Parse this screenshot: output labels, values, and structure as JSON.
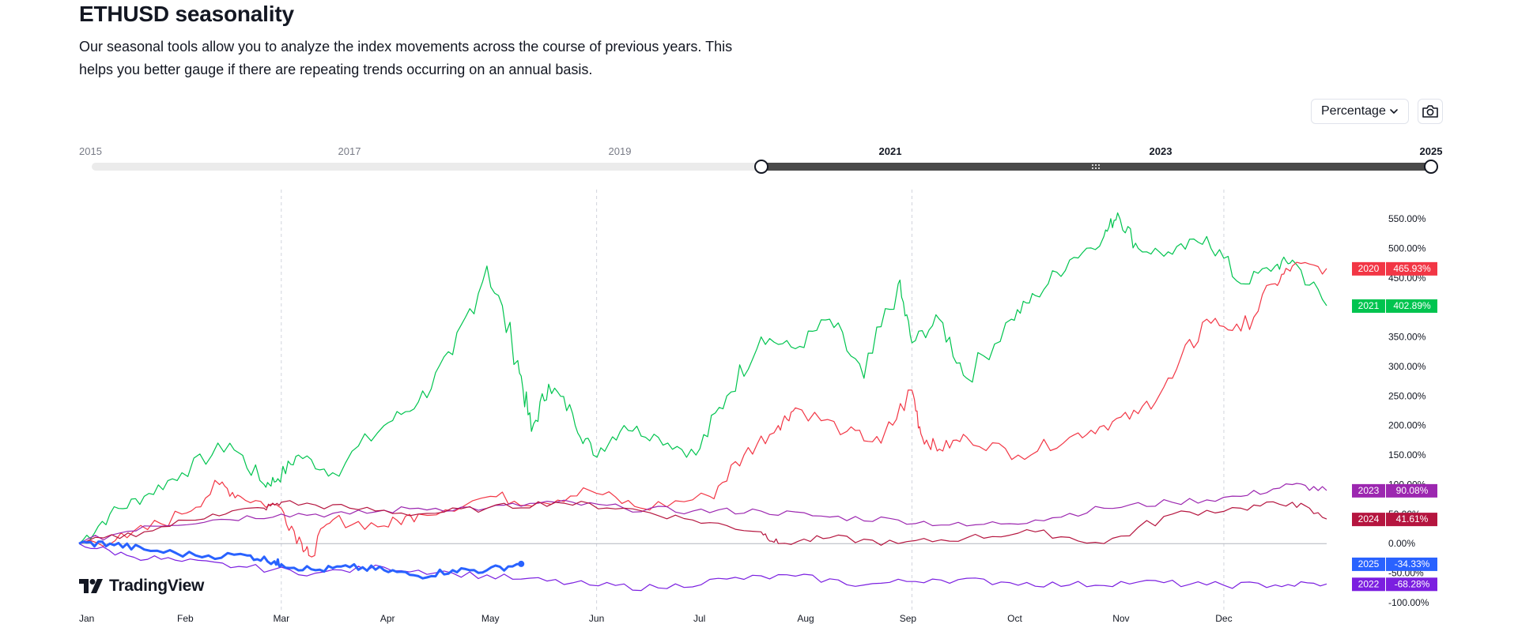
{
  "page": {
    "title": "ETHUSD seasonality",
    "description": "Our seasonal tools allow you to analyze the index movements across the course of previous years. This helps you better gauge if there are repeating trends occurring on an annual basis."
  },
  "controls": {
    "mode_label": "Percentage",
    "mode_icon": "chevron-down-icon",
    "screenshot_icon": "camera-icon"
  },
  "year_range": {
    "ticks": [
      "2015",
      "2017",
      "2019",
      "2021",
      "2023",
      "2025"
    ],
    "active_ticks": [
      "2021",
      "2023",
      "2025"
    ],
    "from": 2020,
    "to": 2025,
    "min": 2015,
    "max": 2025
  },
  "brand": {
    "name": "TradingView"
  },
  "chart_data": {
    "type": "line",
    "x_labels": [
      "Jan",
      "Feb",
      "Mar",
      "Apr",
      "May",
      "Jun",
      "Jul",
      "Aug",
      "Sep",
      "Oct",
      "Nov",
      "Dec"
    ],
    "y_ticks": [
      "-100.00%",
      "-50.00%",
      "0.00%",
      "50.00%",
      "100.00%",
      "150.00%",
      "200.00%",
      "250.00%",
      "300.00%",
      "350.00%",
      "400.00%",
      "450.00%",
      "500.00%",
      "550.00%"
    ],
    "ylim": [
      -100,
      560
    ],
    "ylabel": "",
    "xlabel": "",
    "grid": "vertical-dashed",
    "series": [
      {
        "name": "2021",
        "color": "#00c44f",
        "last_label": "402.89%",
        "x": [
          1,
          10,
          20,
          31,
          45,
          55,
          59,
          65,
          75,
          90,
          100,
          110,
          120,
          129,
          133,
          138,
          145,
          151,
          160,
          170,
          181,
          190,
          200,
          210,
          220,
          230,
          240,
          244,
          252,
          260,
          273,
          280,
          290,
          300,
          304,
          310,
          320,
          330,
          340,
          350,
          355,
          365
        ],
        "y": [
          0,
          50,
          80,
          120,
          170,
          100,
          110,
          150,
          120,
          200,
          240,
          320,
          470,
          310,
          190,
          270,
          220,
          150,
          200,
          180,
          150,
          250,
          350,
          330,
          380,
          280,
          440,
          340,
          380,
          280,
          380,
          420,
          480,
          520,
          560,
          500,
          490,
          520,
          440,
          470,
          480,
          402.89
        ]
      },
      {
        "name": "2020",
        "color": "#f23645",
        "last_label": "465.93%",
        "x": [
          1,
          15,
          31,
          42,
          48,
          60,
          66,
          68,
          75,
          90,
          100,
          121,
          135,
          150,
          165,
          185,
          195,
          205,
          210,
          225,
          235,
          244,
          247,
          252,
          260,
          275,
          290,
          300,
          310,
          320,
          330,
          340,
          350,
          355,
          365
        ],
        "y": [
          0,
          10,
          50,
          100,
          80,
          60,
          0,
          -20,
          40,
          30,
          50,
          80,
          70,
          90,
          60,
          80,
          150,
          200,
          230,
          190,
          170,
          260,
          180,
          160,
          180,
          150,
          180,
          200,
          220,
          280,
          380,
          360,
          440,
          470,
          465.93
        ]
      },
      {
        "name": "2023",
        "color": "#9c27b0",
        "last_label": "90.08%",
        "x": [
          1,
          20,
          40,
          60,
          80,
          100,
          120,
          140,
          160,
          180,
          200,
          220,
          240,
          260,
          280,
          300,
          320,
          340,
          355,
          365
        ],
        "y": [
          0,
          30,
          40,
          50,
          50,
          60,
          60,
          70,
          60,
          55,
          55,
          45,
          40,
          30,
          40,
          60,
          70,
          80,
          100,
          90.08
        ]
      },
      {
        "name": "2024",
        "color": "#b5153f",
        "last_label": "41.61%",
        "x": [
          1,
          20,
          40,
          55,
          60,
          80,
          100,
          120,
          140,
          160,
          180,
          200,
          205,
          220,
          240,
          260,
          280,
          300,
          320,
          340,
          355,
          365
        ],
        "y": [
          0,
          20,
          50,
          60,
          70,
          60,
          50,
          60,
          70,
          60,
          40,
          20,
          0,
          10,
          0,
          10,
          20,
          0,
          50,
          60,
          70,
          41.61
        ]
      },
      {
        "name": "2022",
        "color": "#7b1fe0",
        "last_label": "-68.28%",
        "x": [
          1,
          15,
          31,
          50,
          70,
          90,
          110,
          130,
          150,
          170,
          190,
          210,
          230,
          250,
          270,
          290,
          310,
          330,
          350,
          365
        ],
        "y": [
          0,
          -20,
          -30,
          -40,
          -50,
          -40,
          -50,
          -60,
          -70,
          -75,
          -60,
          -55,
          -70,
          -60,
          -65,
          -70,
          -65,
          -70,
          -70,
          -68.28
        ]
      },
      {
        "name": "2025",
        "color": "#2962ff",
        "last_label": "-34.33%",
        "x": [
          1,
          10,
          20,
          35,
          50,
          58,
          60,
          70,
          80,
          90,
          100,
          110,
          120,
          130
        ],
        "y": [
          0,
          0,
          -10,
          -20,
          -20,
          -30,
          -35,
          -45,
          -40,
          -45,
          -55,
          -45,
          -45,
          -34.33
        ]
      }
    ]
  }
}
